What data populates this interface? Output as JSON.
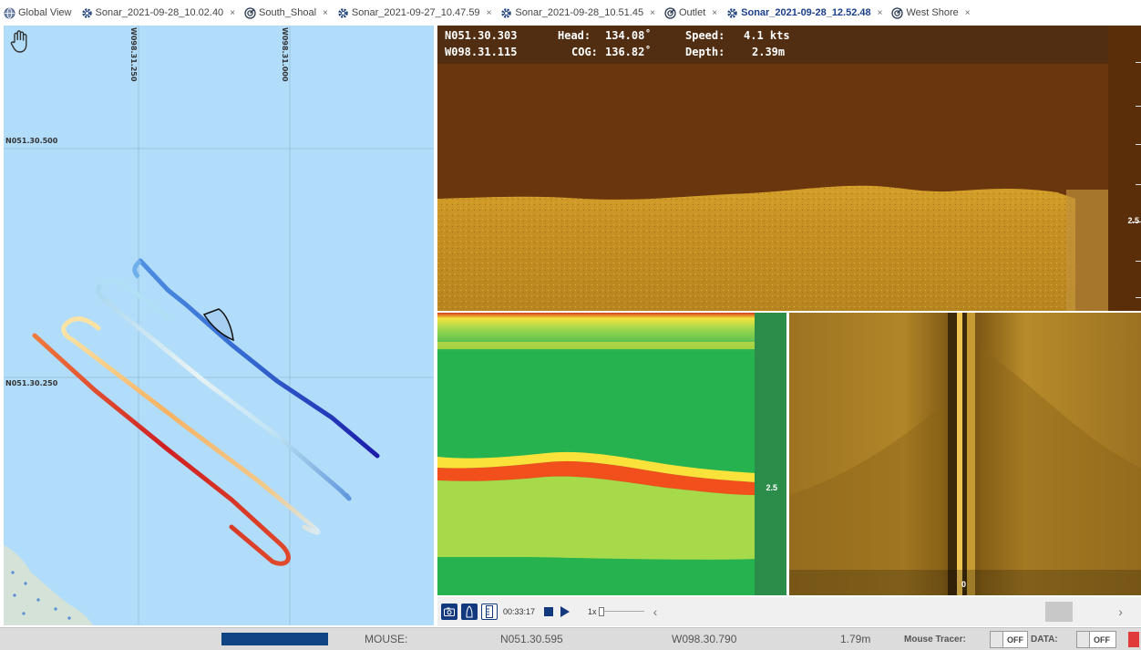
{
  "tabs": [
    {
      "label": "Global View",
      "icon": "globe-icon",
      "closable": false,
      "active": false
    },
    {
      "label": "Sonar_2021-09-28_10.02.40",
      "icon": "sonar-gear-icon",
      "closable": true,
      "active": false
    },
    {
      "label": "South_Shoal",
      "icon": "map-target-icon",
      "closable": true,
      "active": false
    },
    {
      "label": "Sonar_2021-09-27_10.47.59",
      "icon": "sonar-gear-icon",
      "closable": true,
      "active": false
    },
    {
      "label": "Sonar_2021-09-28_10.51.45",
      "icon": "sonar-gear-icon",
      "closable": true,
      "active": false
    },
    {
      "label": "Outlet",
      "icon": "map-target-icon",
      "closable": true,
      "active": false
    },
    {
      "label": "Sonar_2021-09-28_12.52.48",
      "icon": "sonar-gear-icon",
      "closable": true,
      "active": true
    },
    {
      "label": "West Shore",
      "icon": "map-target-icon",
      "closable": true,
      "active": false
    }
  ],
  "tab_close": "×",
  "map": {
    "grid_lon_1": "W098.31.250",
    "grid_lon_2": "W098.31.000",
    "grid_lat_1": "N051.30.500",
    "grid_lat_2": "N051.30.250",
    "tool_icon": "hand-pan-icon"
  },
  "readout": {
    "lat": "N051.30.303",
    "lon": "W098.31.115",
    "head_label": "Head:",
    "head_value": "134.08˚",
    "cog_label": "COG:",
    "cog_value": "136.82˚",
    "speed_label": "Speed:",
    "speed_value": "4.1 kts",
    "depth_label": "Depth:",
    "depth_value": "2.39m"
  },
  "sonar": {
    "scale_label_top": "2.5",
    "scale_label_bl": "2.5",
    "sidescan_center": "0"
  },
  "playback": {
    "time": "00:33:17",
    "speed": "1x",
    "chevron_left": "‹",
    "chevron_right": "›"
  },
  "status": {
    "mouse_label": "MOUSE:",
    "mouse_lat": "N051.30.595",
    "mouse_lon": "W098.30.790",
    "mouse_depth": "1.79m",
    "tracer_label": "Mouse Tracer:",
    "tracer_state": "OFF",
    "data_label": "DATA:",
    "data_state": "OFF"
  },
  "colors": {
    "accent": "#1a3f8a",
    "map_water": "#b1ddfb",
    "progress": "#0f4583"
  }
}
